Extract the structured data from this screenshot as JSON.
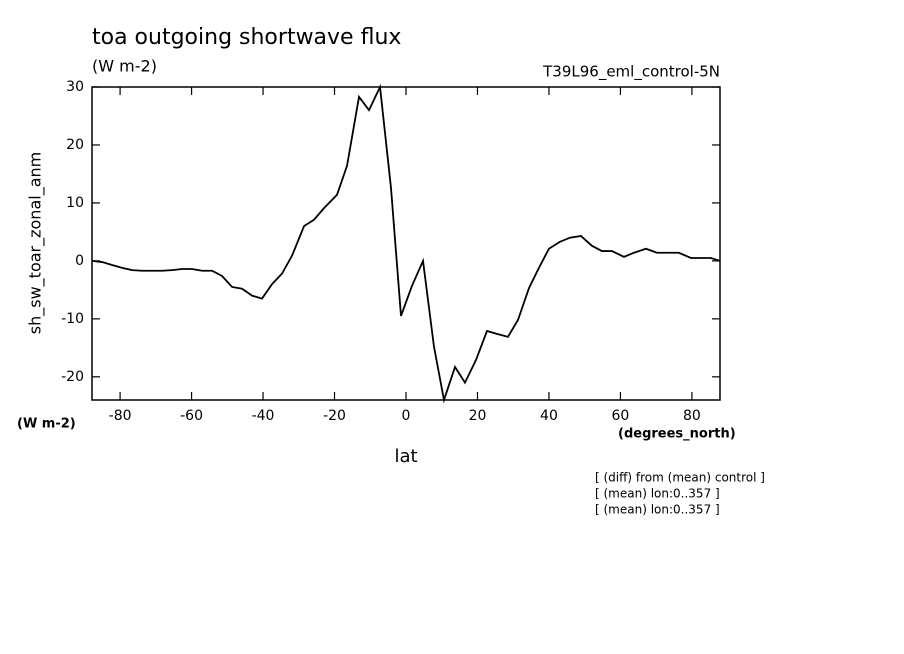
{
  "chart_data": {
    "type": "line",
    "title": "toa outgoing shortwave flux",
    "subtitle": "(W m-2)",
    "run_label": "T39L96_eml_control-5N",
    "y_label": "sh_sw_toar_zonal_anm",
    "y_units": "(W m-2)",
    "x_label": "lat",
    "x_units": "(degrees_north)",
    "notes": [
      "[ (diff) from (mean) control ]",
      "[ (mean) lon:0..357 ]",
      "[ (mean) lon:0..357 ]"
    ],
    "xlim": [
      -87.86,
      87.86
    ],
    "ylim": [
      -24,
      30
    ],
    "xticks": [
      -80,
      -60,
      -40,
      -20,
      0,
      20,
      40,
      60,
      80
    ],
    "yticks": [
      -20,
      -10,
      0,
      10,
      20,
      30
    ],
    "color": "#000000",
    "x": [
      -87.86,
      -85.03,
      -82.24,
      -79.44,
      -76.64,
      -73.85,
      -68.25,
      -65.45,
      -62.66,
      -59.86,
      -57.06,
      -54.27,
      -51.47,
      -48.67,
      -45.87,
      -43.08,
      -40.28,
      -37.48,
      -34.69,
      -31.89,
      -28.53,
      -25.73,
      -22.94,
      -19.3,
      -16.5,
      -13.15,
      -10.35,
      -7.27,
      -4.2,
      -1.4,
      1.68,
      4.76,
      7.83,
      10.63,
      13.71,
      16.5,
      19.58,
      22.66,
      25.45,
      28.53,
      31.33,
      34.41,
      37.2,
      40.0,
      43.08,
      45.87,
      48.95,
      52.03,
      54.83,
      57.62,
      60.98,
      63.78,
      67.13,
      70.21,
      73.57,
      76.36,
      79.72,
      82.52,
      85.31,
      87.86
    ],
    "values": [
      0,
      -0.2,
      -0.7,
      -1.2,
      -1.6,
      -1.7,
      -1.7,
      -1.6,
      -1.4,
      -1.4,
      -1.7,
      -1.7,
      -2.6,
      -4.5,
      -4.8,
      -6.0,
      -6.5,
      -4.0,
      -2.2,
      0.9,
      6.0,
      7.1,
      9.1,
      11.4,
      16.4,
      28.3,
      26.0,
      30.0,
      12.6,
      -9.5,
      -4.3,
      0,
      -14.8,
      -24.0,
      -18.3,
      -21.0,
      -17.1,
      -12.1,
      -12.6,
      -13.1,
      -10.2,
      -4.7,
      -1.2,
      2.1,
      3.3,
      4.0,
      4.3,
      2.6,
      1.7,
      1.7,
      0.7,
      1.4,
      2.1,
      1.4,
      1.4,
      1.4,
      0.5,
      0.5,
      0.5,
      0
    ]
  }
}
